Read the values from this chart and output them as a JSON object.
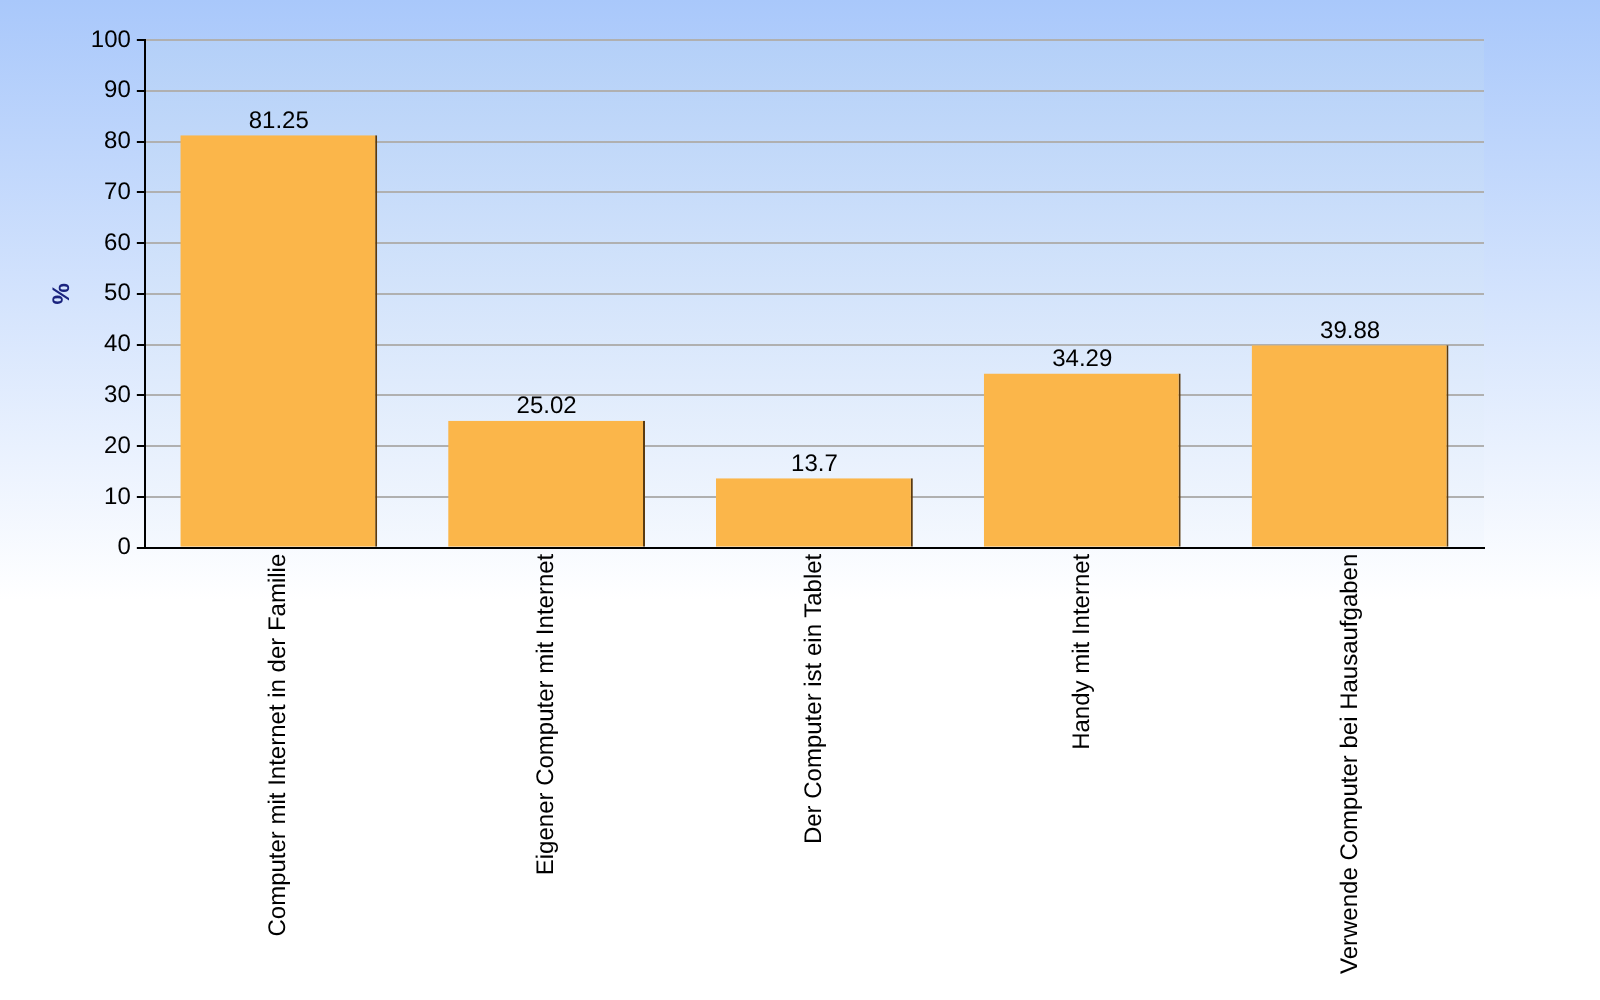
{
  "chart_data": {
    "type": "bar",
    "ylabel": "%",
    "categories": [
      "Computer mit Internet in der Familie",
      "Eigener Computer mit Internet",
      "Der Computer ist ein Tablet",
      "Handy mit Internet",
      "Verwende Computer bei Hausaufgaben"
    ],
    "values": [
      81.25,
      25.02,
      13.7,
      34.29,
      39.88
    ],
    "color": "#fbb64a",
    "ylim": [
      0,
      100
    ],
    "yticks": [
      0,
      10,
      20,
      30,
      40,
      50,
      60,
      70,
      80,
      90,
      100
    ],
    "grid": "y",
    "legend": false,
    "data_labels": true
  }
}
